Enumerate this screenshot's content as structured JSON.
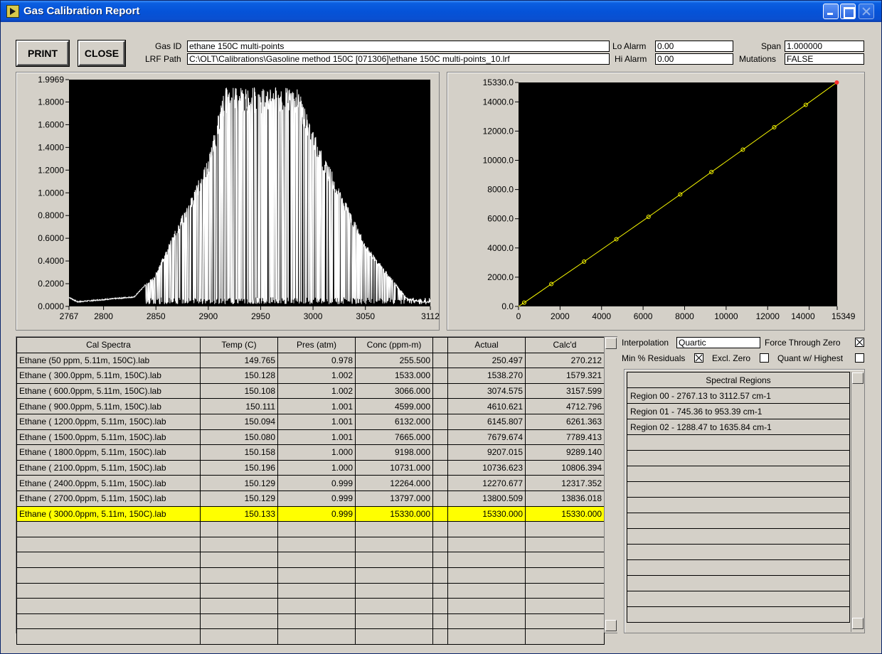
{
  "window": {
    "title": "Gas Calibration Report"
  },
  "buttons": {
    "print": "PRINT",
    "close": "CLOSE"
  },
  "header": {
    "gas_id_label": "Gas ID",
    "gas_id": "ethane 150C multi-points",
    "lrf_label": "LRF Path",
    "lrf_path": "C:\\OLT\\Calibrations\\Gasoline method 150C [071306]\\ethane 150C multi-points_10.lrf",
    "lo_alarm_label": "Lo Alarm",
    "lo_alarm": "0.00",
    "hi_alarm_label": "Hi Alarm",
    "hi_alarm": "0.00",
    "span_label": "Span",
    "span": "1.000000",
    "mutations_label": "Mutations",
    "mutations": "FALSE"
  },
  "spectrum_chart": {
    "type": "line",
    "xlim": [
      2767,
      3112
    ],
    "ylim": [
      0.0,
      1.9969
    ],
    "x_ticks": [
      "2767",
      "2800",
      "2850",
      "2900",
      "2950",
      "3000",
      "3050",
      "3112"
    ],
    "y_ticks": [
      "0.0000",
      "0.2000",
      "0.4000",
      "0.6000",
      "0.8000",
      "1.0000",
      "1.2000",
      "1.4000",
      "1.6000",
      "1.8000",
      "1.9969"
    ],
    "color": "#ffffff"
  },
  "chart_data": {
    "type": "scatter",
    "title": "",
    "xlim": [
      0,
      15349
    ],
    "ylim": [
      0,
      15330
    ],
    "x_ticks": [
      "0",
      "2000",
      "4000",
      "6000",
      "8000",
      "10000",
      "12000",
      "14000",
      "15349"
    ],
    "y_ticks": [
      "0.0",
      "2000.0",
      "4000.0",
      "6000.0",
      "8000.0",
      "10000.0",
      "12000.0",
      "14000.0",
      "15330.0"
    ],
    "points": [
      [
        270.212,
        255.5
      ],
      [
        1579.321,
        1533
      ],
      [
        3157.599,
        3066
      ],
      [
        4712.796,
        4599
      ],
      [
        6261.363,
        6132
      ],
      [
        7789.413,
        7665
      ],
      [
        9289.14,
        9198
      ],
      [
        10806.394,
        10731
      ],
      [
        12317.352,
        12264
      ],
      [
        13836.018,
        13797
      ],
      [
        15330,
        15330
      ]
    ],
    "line_color": "#ffff00",
    "highlight_color": "#ff3030"
  },
  "table": {
    "headers": [
      "Cal Spectra",
      "Temp (C)",
      "Pres (atm)",
      "Conc (ppm-m)",
      "",
      "Actual",
      "Calc'd"
    ],
    "rows": [
      [
        "Ethane (50 ppm, 5.11m, 150C).lab",
        "149.765",
        "0.978",
        "255.500",
        "250.497",
        "270.212"
      ],
      [
        "Ethane (  300.0ppm, 5.11m, 150C).lab",
        "150.128",
        "1.002",
        "1533.000",
        "1538.270",
        "1579.321"
      ],
      [
        "Ethane (  600.0ppm, 5.11m, 150C).lab",
        "150.108",
        "1.002",
        "3066.000",
        "3074.575",
        "3157.599"
      ],
      [
        "Ethane (  900.0ppm, 5.11m, 150C).lab",
        "150.111",
        "1.001",
        "4599.000",
        "4610.621",
        "4712.796"
      ],
      [
        "Ethane ( 1200.0ppm, 5.11m, 150C).lab",
        "150.094",
        "1.001",
        "6132.000",
        "6145.807",
        "6261.363"
      ],
      [
        "Ethane ( 1500.0ppm, 5.11m, 150C).lab",
        "150.080",
        "1.001",
        "7665.000",
        "7679.674",
        "7789.413"
      ],
      [
        "Ethane ( 1800.0ppm, 5.11m, 150C).lab",
        "150.158",
        "1.000",
        "9198.000",
        "9207.015",
        "9289.140"
      ],
      [
        "Ethane ( 2100.0ppm, 5.11m, 150C).lab",
        "150.196",
        "1.000",
        "10731.000",
        "10736.623",
        "10806.394"
      ],
      [
        "Ethane ( 2400.0ppm, 5.11m, 150C).lab",
        "150.129",
        "0.999",
        "12264.000",
        "12270.677",
        "12317.352"
      ],
      [
        "Ethane ( 2700.0ppm, 5.11m, 150C).lab",
        "150.129",
        "0.999",
        "13797.000",
        "13800.509",
        "13836.018"
      ],
      [
        "Ethane ( 3000.0ppm, 5.11m, 150C).lab",
        "150.133",
        "0.999",
        "15330.000",
        "15330.000",
        "15330.000"
      ]
    ],
    "selected_row": 10,
    "highlight_color": "#ffff00"
  },
  "options": {
    "interpolation_label": "Interpolation",
    "interpolation": "Quartic",
    "force_zero_label": "Force Through Zero",
    "force_zero": true,
    "min_residuals_label": "Min % Residuals",
    "min_residuals": true,
    "excl_zero_label": "Excl. Zero",
    "excl_zero": false,
    "quant_highest_label": "Quant w/ Highest",
    "quant_highest": false
  },
  "regions": {
    "header": "Spectral Regions",
    "items": [
      "Region 00 - 2767.13 to 3112.57 cm-1",
      "Region 01 - 745.36 to 953.39 cm-1",
      "Region 02 - 1288.47 to 1635.84 cm-1"
    ]
  }
}
